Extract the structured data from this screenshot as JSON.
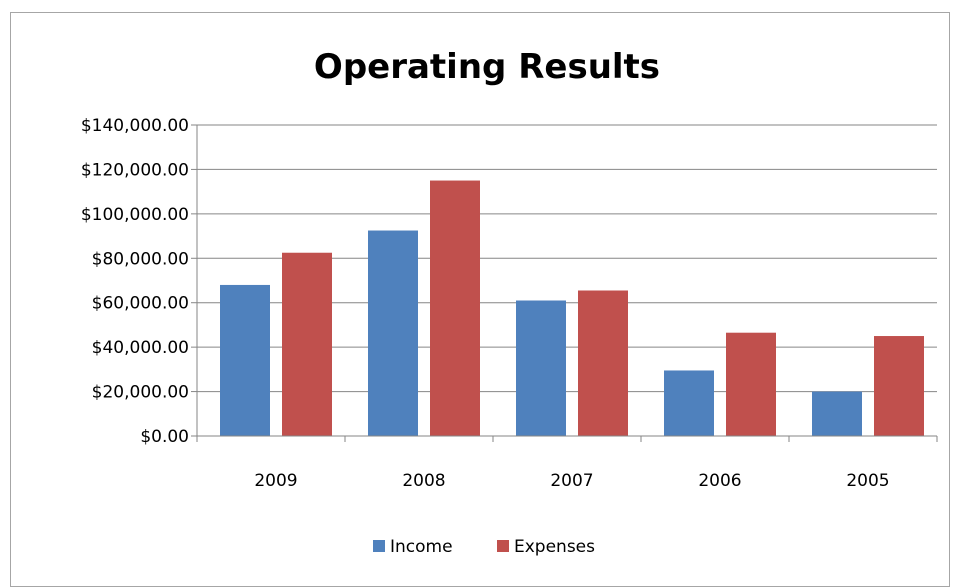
{
  "chart_data": {
    "type": "bar",
    "title": "Operating Results",
    "categories": [
      "2009",
      "2008",
      "2007",
      "2006",
      "2005"
    ],
    "series": [
      {
        "name": "Income",
        "values": [
          68000,
          92500,
          61000,
          29500,
          20000
        ],
        "color": "#4f81bd"
      },
      {
        "name": "Expenses",
        "values": [
          82500,
          115000,
          65500,
          46500,
          45000
        ],
        "color": "#c0504d"
      }
    ],
    "yticks": [
      "$0.00",
      "$20,000.00",
      "$40,000.00",
      "$60,000.00",
      "$80,000.00",
      "$100,000.00",
      "$120,000.00",
      "$140,000.00"
    ],
    "ylim": [
      0,
      140000
    ],
    "ystep": 20000,
    "grid": true,
    "legend": "bottom"
  }
}
